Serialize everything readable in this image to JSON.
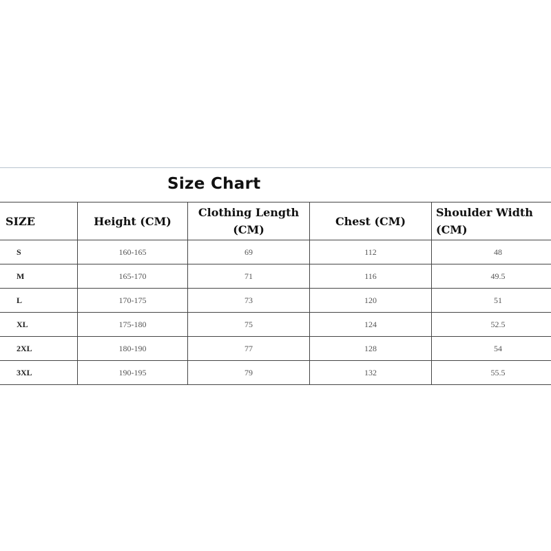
{
  "title": "Size Chart",
  "columns": [
    "SIZE",
    "Height (CM)",
    "Clothing Length (CM)",
    "Chest (CM)",
    "Shoulder Width (CM)"
  ],
  "rows": [
    [
      "S",
      "160-165",
      "69",
      "112",
      "48"
    ],
    [
      "M",
      "165-170",
      "71",
      "116",
      "49.5"
    ],
    [
      "L",
      "170-175",
      "73",
      "120",
      "51"
    ],
    [
      "XL",
      "175-180",
      "75",
      "124",
      "52.5"
    ],
    [
      "2XL",
      "180-190",
      "77",
      "128",
      "54"
    ],
    [
      "3XL",
      "190-195",
      "79",
      "132",
      "55.5"
    ]
  ]
}
